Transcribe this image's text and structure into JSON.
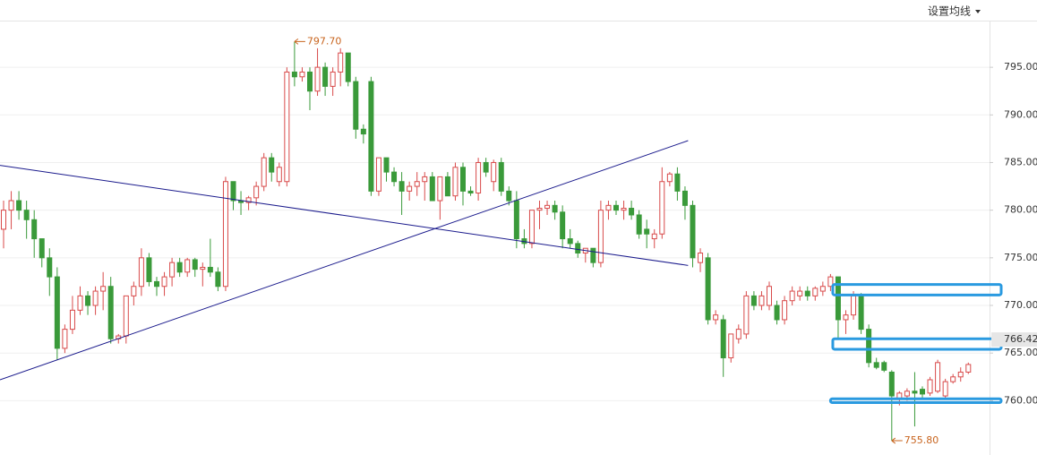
{
  "toolbar": {
    "button": "设置均线"
  },
  "chart_data": {
    "type": "candlestick",
    "up_color": "#d84a4a",
    "down_color": "#3a9a3a",
    "trendline_color": "#1a1a8c",
    "highlight_color": "#2a9ae0",
    "ylim": [
      754.3,
      799.9
    ],
    "yticks": [
      {
        "value": 760,
        "label": "760.00"
      },
      {
        "value": 765,
        "label": "765.00"
      },
      {
        "value": 770,
        "label": "770.00"
      },
      {
        "value": 775,
        "label": "775.00"
      },
      {
        "value": 780,
        "label": "780.00"
      },
      {
        "value": 785,
        "label": "785.00"
      },
      {
        "value": 790,
        "label": "790.00"
      },
      {
        "value": 795,
        "label": "795.00"
      }
    ],
    "grid": true,
    "last_price": 766.42,
    "max_label": {
      "index": 38,
      "value": 797.7,
      "label": "797.70"
    },
    "min_label": {
      "index": 116,
      "value": 755.8,
      "label": "755.80"
    },
    "trendlines": [
      {
        "x": [
          -0.47,
          89.4
        ],
        "values": [
          784.7,
          774.2
        ]
      },
      {
        "x": [
          -0.47,
          89.4
        ],
        "values": [
          762.2,
          787.3
        ]
      }
    ],
    "highlights": [
      {
        "from": 108.3,
        "range": [
          771.1,
          772.2
        ]
      },
      {
        "from": 108.3,
        "range": [
          765.4,
          766.5
        ]
      },
      {
        "from": 108.0,
        "range": [
          759.8,
          760.2
        ]
      }
    ],
    "ohlc": [
      [
        778,
        781,
        776,
        780
      ],
      [
        780,
        782,
        778,
        781
      ],
      [
        781,
        782,
        779,
        780
      ],
      [
        780,
        781,
        777,
        779
      ],
      [
        779,
        780,
        775,
        777
      ],
      [
        777,
        777,
        774,
        775
      ],
      [
        775,
        776,
        771,
        773
      ],
      [
        773,
        774,
        764.3,
        765.5
      ],
      [
        765.5,
        768,
        765,
        767.5
      ],
      [
        767.5,
        771,
        767,
        769.5
      ],
      [
        769.5,
        772,
        769,
        771
      ],
      [
        771,
        771.5,
        769,
        770
      ],
      [
        770,
        772,
        769,
        771.5
      ],
      [
        771.5,
        773.5,
        769.5,
        772
      ],
      [
        772,
        773,
        766,
        766.5
      ],
      [
        766.5,
        767,
        766,
        766.8
      ],
      [
        766.8,
        771,
        766,
        771
      ],
      [
        771,
        772.5,
        770,
        772
      ],
      [
        772,
        776,
        771,
        775
      ],
      [
        775,
        775.5,
        772,
        772.5
      ],
      [
        772.5,
        773,
        771,
        772
      ],
      [
        772,
        773.5,
        771,
        773
      ],
      [
        773,
        775,
        772,
        774.5
      ],
      [
        774.5,
        775,
        773,
        773.5
      ],
      [
        773.5,
        775,
        773,
        774.8
      ],
      [
        774.8,
        775,
        773,
        773.8
      ],
      [
        773.8,
        774.5,
        772,
        774
      ],
      [
        774,
        777,
        773,
        773.5
      ],
      [
        773.5,
        774,
        771.5,
        772
      ],
      [
        772,
        783.5,
        771.5,
        783
      ],
      [
        783,
        783,
        780,
        781
      ],
      [
        781,
        782,
        779.5,
        780.8
      ],
      [
        780.8,
        781.5,
        780,
        781.3
      ],
      [
        781.3,
        783,
        780.5,
        782.5
      ],
      [
        782.5,
        786,
        782,
        785.5
      ],
      [
        785.5,
        786,
        783,
        784
      ],
      [
        783,
        785,
        782.5,
        784.5
      ],
      [
        783,
        795,
        782.5,
        794.5
      ],
      [
        794.5,
        797.7,
        793,
        794
      ],
      [
        794,
        795,
        793.5,
        794.5
      ],
      [
        794.5,
        795,
        790.5,
        792.5
      ],
      [
        792.5,
        797,
        792,
        795
      ],
      [
        795,
        795.5,
        792,
        793
      ],
      [
        793,
        795,
        792,
        794.5
      ],
      [
        794.5,
        797,
        793,
        796.5
      ],
      [
        796.5,
        796.5,
        793,
        793.5
      ],
      [
        793.5,
        794,
        787.5,
        788.5
      ],
      [
        788.5,
        789,
        787,
        788
      ],
      [
        793.5,
        794,
        781.5,
        782
      ],
      [
        782,
        785.5,
        781.5,
        785.5
      ],
      [
        785.5,
        785.5,
        783,
        784
      ],
      [
        784,
        784.5,
        782.5,
        783
      ],
      [
        783,
        784,
        779.5,
        782
      ],
      [
        782,
        783,
        781,
        782.5
      ],
      [
        782.5,
        784,
        781.5,
        783
      ],
      [
        783,
        784,
        781,
        783.5
      ],
      [
        783.5,
        784,
        781,
        781
      ],
      [
        781,
        783.5,
        779,
        783.5
      ],
      [
        783.5,
        784,
        781.5,
        781.5
      ],
      [
        781.5,
        785,
        781,
        784.5
      ],
      [
        784.5,
        785,
        780.5,
        782
      ],
      [
        782,
        782.5,
        781.5,
        781.8
      ],
      [
        781.8,
        785.5,
        781,
        785
      ],
      [
        785,
        785.5,
        783.5,
        784
      ],
      [
        783,
        785.3,
        782,
        785
      ],
      [
        785,
        785.5,
        781.5,
        782
      ],
      [
        782,
        782.5,
        780.5,
        781
      ],
      [
        781,
        782,
        776,
        777
      ],
      [
        777,
        778,
        776,
        776.5
      ],
      [
        776.5,
        780,
        776,
        780
      ],
      [
        780,
        781,
        778,
        780.2
      ],
      [
        780.2,
        781,
        779.5,
        780.5
      ],
      [
        780.5,
        781,
        779,
        779.8
      ],
      [
        779.8,
        780.5,
        776,
        777
      ],
      [
        777,
        778,
        776,
        776.5
      ],
      [
        776.5,
        776.8,
        775,
        775.5
      ],
      [
        775.5,
        776,
        774.5,
        776
      ],
      [
        776,
        776,
        774,
        774.5
      ],
      [
        774.5,
        781,
        774,
        780
      ],
      [
        780,
        781,
        779,
        780.5
      ],
      [
        780.5,
        781,
        779.5,
        780
      ],
      [
        780,
        781,
        779,
        780.2
      ],
      [
        780.2,
        781,
        779,
        779.5
      ],
      [
        779.5,
        780,
        777,
        777.5
      ],
      [
        778,
        779,
        776,
        777.5
      ],
      [
        777,
        778,
        776,
        777.5
      ],
      [
        777.5,
        784.5,
        777,
        783
      ],
      [
        783,
        784,
        782.5,
        783.8
      ],
      [
        783.8,
        784.5,
        781,
        782
      ],
      [
        782,
        782.5,
        779,
        780.5
      ],
      [
        780.5,
        781,
        774,
        775
      ],
      [
        774.5,
        776,
        773.5,
        775.5
      ],
      [
        775,
        775.5,
        768,
        768.5
      ],
      [
        768.5,
        769.5,
        768,
        769
      ],
      [
        768.5,
        769,
        762.5,
        764.5
      ],
      [
        764.5,
        767,
        764,
        767
      ],
      [
        766.5,
        768,
        766,
        767.5
      ],
      [
        767,
        771.5,
        766.5,
        771
      ],
      [
        771,
        771.5,
        769.5,
        770
      ],
      [
        770,
        771.5,
        769.5,
        771
      ],
      [
        770,
        772.5,
        769.5,
        772
      ],
      [
        770,
        770.5,
        768,
        768.5
      ],
      [
        768.5,
        771,
        768,
        770.5
      ],
      [
        770.5,
        772,
        770,
        771.5
      ],
      [
        771,
        772,
        770.5,
        771.5
      ],
      [
        771.5,
        772,
        770.5,
        771
      ],
      [
        771,
        772,
        770.5,
        771.8
      ],
      [
        771.5,
        772.5,
        771,
        772
      ],
      [
        772,
        773.3,
        771.5,
        773
      ],
      [
        773,
        773,
        766.5,
        768.5
      ],
      [
        768.5,
        769.5,
        767,
        769
      ],
      [
        769,
        771.5,
        768.5,
        771
      ],
      [
        771,
        771.3,
        767,
        767.5
      ],
      [
        767.5,
        768,
        763.5,
        764
      ],
      [
        764,
        764.5,
        763.3,
        763.5
      ],
      [
        764,
        764.2,
        763,
        763.2
      ],
      [
        763,
        763.2,
        755.8,
        760.5
      ],
      [
        760.2,
        761,
        759.5,
        760.8
      ],
      [
        760.5,
        761.3,
        760,
        761
      ],
      [
        761,
        763,
        757.3,
        760.8
      ],
      [
        761.2,
        761.5,
        760.3,
        760.7
      ],
      [
        760.8,
        762.5,
        760.5,
        762.2
      ],
      [
        761,
        764.3,
        760.8,
        764
      ],
      [
        760.5,
        762.3,
        760.3,
        762
      ],
      [
        762,
        762.8,
        761.8,
        762.5
      ],
      [
        762.5,
        763.5,
        762,
        763
      ],
      [
        763,
        764,
        762.8,
        763.8
      ]
    ]
  }
}
